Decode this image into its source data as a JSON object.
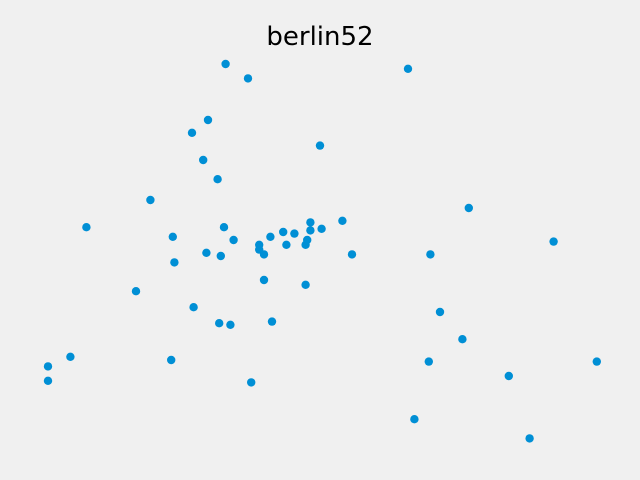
{
  "chart_data": {
    "type": "scatter",
    "title": "berlin52",
    "xlabel": "",
    "ylabel": "",
    "axes_visible": false,
    "grid": false,
    "marker_color": "#008fd5",
    "background_color": "#f0f0f0",
    "xlim": [
      -50,
      1800
    ],
    "ylim": [
      -50,
      1250
    ],
    "points": [
      [
        565,
        575
      ],
      [
        25,
        185
      ],
      [
        345,
        750
      ],
      [
        945,
        685
      ],
      [
        845,
        655
      ],
      [
        880,
        660
      ],
      [
        25,
        230
      ],
      [
        525,
        1000
      ],
      [
        580,
        1175
      ],
      [
        650,
        1130
      ],
      [
        1605,
        620
      ],
      [
        1220,
        580
      ],
      [
        1465,
        200
      ],
      [
        1530,
        5
      ],
      [
        845,
        680
      ],
      [
        725,
        370
      ],
      [
        145,
        665
      ],
      [
        415,
        635
      ],
      [
        510,
        875
      ],
      [
        560,
        365
      ],
      [
        300,
        465
      ],
      [
        520,
        585
      ],
      [
        480,
        415
      ],
      [
        835,
        625
      ],
      [
        975,
        580
      ],
      [
        1215,
        245
      ],
      [
        1320,
        315
      ],
      [
        1250,
        400
      ],
      [
        660,
        180
      ],
      [
        410,
        250
      ],
      [
        420,
        555
      ],
      [
        575,
        665
      ],
      [
        1150,
        1160
      ],
      [
        700,
        580
      ],
      [
        685,
        595
      ],
      [
        685,
        610
      ],
      [
        770,
        610
      ],
      [
        795,
        645
      ],
      [
        720,
        635
      ],
      [
        760,
        650
      ],
      [
        475,
        960
      ],
      [
        95,
        260
      ],
      [
        875,
        920
      ],
      [
        700,
        500
      ],
      [
        555,
        815
      ],
      [
        830,
        485
      ],
      [
        1170,
        65
      ],
      [
        830,
        610
      ],
      [
        605,
        625
      ],
      [
        595,
        360
      ],
      [
        1340,
        725
      ],
      [
        1740,
        245
      ]
    ]
  }
}
